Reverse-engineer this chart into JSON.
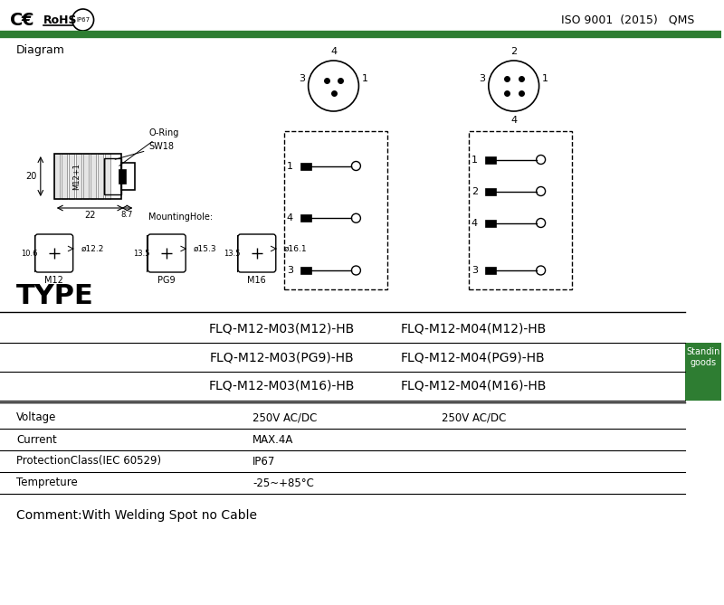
{
  "bg_color": "#ffffff",
  "green_line_color": "#2e7d32",
  "header_iso": "ISO 9001  (2015)   QMS",
  "diagram_label": "Diagram",
  "type_label": "TYPE",
  "type_rows": [
    [
      "FLQ-M12-M03(M12)-HB",
      "FLQ-M12-M04(M12)-HB"
    ],
    [
      "FLQ-M12-M03(PG9)-HB",
      "FLQ-M12-M04(PG9)-HB"
    ],
    [
      "FLQ-M12-M03(M16)-HB",
      "FLQ-M12-M04(M16)-HB"
    ]
  ],
  "standing_goods_color": "#2e7d32",
  "standing_goods_text": "Standin\ngoods",
  "specs": [
    [
      "Voltage",
      "250V AC/DC",
      "250V AC/DC"
    ],
    [
      "Current",
      "MAX.4A",
      ""
    ],
    [
      "ProtectionClass(IEC 60529)",
      "IP67",
      ""
    ],
    [
      "Tempreture",
      "-25~+85°C",
      ""
    ]
  ],
  "comment": "Comment:With Welding Spot no Cable"
}
